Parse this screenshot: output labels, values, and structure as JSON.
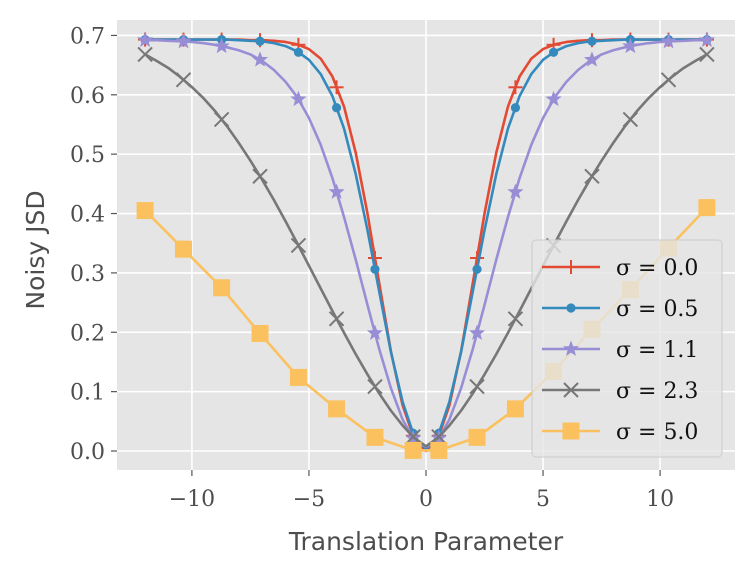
{
  "chart_data": {
    "type": "line",
    "title": "",
    "xlabel": "Translation Parameter",
    "ylabel": "Noisy JSD",
    "xlim": [
      -13.2,
      13.2
    ],
    "ylim": [
      -0.032,
      0.726
    ],
    "xticks": [
      -10,
      -5,
      0,
      5,
      10
    ],
    "xtick_labels": [
      "−10",
      "−5",
      "0",
      "5",
      "10"
    ],
    "yticks": [
      0.0,
      0.1,
      0.2,
      0.3,
      0.4,
      0.5,
      0.6,
      0.7
    ],
    "ytick_labels": [
      "0.0",
      "0.1",
      "0.2",
      "0.3",
      "0.4",
      "0.5",
      "0.6",
      "0.7"
    ],
    "grid": true,
    "legend_position": "lower-right",
    "series": [
      {
        "name": "σ = 0.0",
        "color": "#e24a33",
        "marker": "plus",
        "x": [
          -12,
          -11.5,
          -11,
          -10.5,
          -10,
          -9.5,
          -9,
          -8.5,
          -8,
          -7.5,
          -7,
          -6.5,
          -6,
          -5.5,
          -5,
          -4.5,
          -4,
          -3.5,
          -3,
          -2.5,
          -2,
          -1.5,
          -1,
          -0.5,
          0,
          0.5,
          1,
          1.5,
          2,
          2.5,
          3,
          3.5,
          4,
          4.5,
          5,
          5.5,
          6,
          6.5,
          7,
          7.5,
          8,
          8.5,
          9,
          9.5,
          10,
          10.5,
          11,
          11.5,
          12
        ],
        "y": [
          0.693,
          0.693,
          0.693,
          0.693,
          0.693,
          0.693,
          0.693,
          0.693,
          0.693,
          0.692,
          0.692,
          0.691,
          0.689,
          0.685,
          0.677,
          0.661,
          0.631,
          0.58,
          0.502,
          0.4,
          0.283,
          0.168,
          0.077,
          0.02,
          0.0,
          0.02,
          0.077,
          0.168,
          0.283,
          0.4,
          0.502,
          0.58,
          0.631,
          0.661,
          0.677,
          0.685,
          0.689,
          0.691,
          0.692,
          0.692,
          0.693,
          0.693,
          0.693,
          0.693,
          0.693,
          0.693,
          0.693,
          0.693,
          0.693
        ],
        "marker_x": [
          -12,
          -10.36,
          -8.73,
          -7.09,
          -5.45,
          -3.82,
          -2.18,
          -0.55,
          0.55,
          2.18,
          3.82,
          5.45,
          7.09,
          8.73,
          10.36,
          12
        ]
      },
      {
        "name": "σ = 0.5",
        "color": "#348abd",
        "marker": "dot",
        "x": [
          -12,
          -11.5,
          -11,
          -10.5,
          -10,
          -9.5,
          -9,
          -8.5,
          -8,
          -7.5,
          -7,
          -6.5,
          -6,
          -5.5,
          -5,
          -4.5,
          -4,
          -3.5,
          -3,
          -2.5,
          -2,
          -1.5,
          -1,
          -0.5,
          0,
          0.5,
          1,
          1.5,
          2,
          2.5,
          3,
          3.5,
          4,
          4.5,
          5,
          5.5,
          6,
          6.5,
          7,
          7.5,
          8,
          8.5,
          9,
          9.5,
          10,
          10.5,
          11,
          11.5,
          12
        ],
        "y": [
          0.693,
          0.693,
          0.693,
          0.693,
          0.693,
          0.693,
          0.693,
          0.693,
          0.692,
          0.691,
          0.69,
          0.687,
          0.682,
          0.673,
          0.659,
          0.635,
          0.598,
          0.543,
          0.466,
          0.372,
          0.269,
          0.167,
          0.083,
          0.024,
          0.003,
          0.024,
          0.083,
          0.167,
          0.269,
          0.372,
          0.466,
          0.543,
          0.598,
          0.635,
          0.659,
          0.673,
          0.682,
          0.687,
          0.69,
          0.691,
          0.692,
          0.693,
          0.693,
          0.693,
          0.693,
          0.693,
          0.693,
          0.693,
          0.693
        ],
        "marker_x": [
          -12,
          -10.36,
          -8.73,
          -7.09,
          -5.45,
          -3.82,
          -2.18,
          -0.55,
          0.55,
          2.18,
          3.82,
          5.45,
          7.09,
          8.73,
          10.36,
          12
        ]
      },
      {
        "name": "σ = 1.1",
        "color": "#988ed5",
        "marker": "star",
        "x": [
          -12,
          -11.5,
          -11,
          -10.5,
          -10,
          -9.5,
          -9,
          -8.5,
          -8,
          -7.5,
          -7,
          -6.5,
          -6,
          -5.5,
          -5,
          -4.5,
          -4,
          -3.5,
          -3,
          -2.5,
          -2,
          -1.5,
          -1,
          -0.5,
          0,
          0.5,
          1,
          1.5,
          2,
          2.5,
          3,
          3.5,
          4,
          4.5,
          5,
          5.5,
          6,
          6.5,
          7,
          7.5,
          8,
          8.5,
          9,
          9.5,
          10,
          10.5,
          11,
          11.5,
          12
        ],
        "y": [
          0.692,
          0.692,
          0.691,
          0.69,
          0.689,
          0.687,
          0.684,
          0.68,
          0.675,
          0.668,
          0.657,
          0.642,
          0.622,
          0.596,
          0.561,
          0.516,
          0.46,
          0.394,
          0.322,
          0.246,
          0.172,
          0.106,
          0.053,
          0.018,
          0.007,
          0.018,
          0.053,
          0.106,
          0.172,
          0.246,
          0.322,
          0.394,
          0.46,
          0.516,
          0.561,
          0.596,
          0.622,
          0.642,
          0.657,
          0.668,
          0.675,
          0.68,
          0.684,
          0.687,
          0.689,
          0.69,
          0.691,
          0.692,
          0.692
        ],
        "marker_x": [
          -12,
          -10.36,
          -8.73,
          -7.09,
          -5.45,
          -3.82,
          -2.18,
          -0.55,
          0.55,
          2.18,
          3.82,
          5.45,
          7.09,
          8.73,
          10.36,
          12
        ]
      },
      {
        "name": "σ = 2.3",
        "color": "#777777",
        "marker": "x",
        "x": [
          -12,
          -11.5,
          -11,
          -10.5,
          -10,
          -9.5,
          -9,
          -8.5,
          -8,
          -7.5,
          -7,
          -6.5,
          -6,
          -5.5,
          -5,
          -4.5,
          -4,
          -3.5,
          -3,
          -2.5,
          -2,
          -1.5,
          -1,
          -0.5,
          0,
          0.5,
          1,
          1.5,
          2,
          2.5,
          3,
          3.5,
          4,
          4.5,
          5,
          5.5,
          6,
          6.5,
          7,
          7.5,
          8,
          8.5,
          9,
          9.5,
          10,
          10.5,
          11,
          11.5,
          12
        ],
        "y": [
          0.668,
          0.657,
          0.645,
          0.63,
          0.613,
          0.594,
          0.572,
          0.547,
          0.519,
          0.489,
          0.457,
          0.423,
          0.387,
          0.35,
          0.312,
          0.274,
          0.236,
          0.199,
          0.163,
          0.129,
          0.097,
          0.068,
          0.043,
          0.022,
          0.008,
          0.022,
          0.043,
          0.068,
          0.097,
          0.129,
          0.163,
          0.199,
          0.236,
          0.274,
          0.312,
          0.35,
          0.387,
          0.423,
          0.457,
          0.489,
          0.519,
          0.547,
          0.572,
          0.594,
          0.613,
          0.63,
          0.645,
          0.657,
          0.668
        ],
        "marker_x": [
          -12,
          -10.36,
          -8.73,
          -7.09,
          -5.45,
          -3.82,
          -2.18,
          -0.55,
          0.55,
          2.18,
          3.82,
          5.45,
          7.09,
          8.73,
          10.36,
          12
        ]
      },
      {
        "name": "σ = 5.0",
        "color": "#fbc15e",
        "marker": "square",
        "x": [
          -12,
          -10.36,
          -8.73,
          -7.09,
          -5.45,
          -3.82,
          -2.18,
          -0.55,
          0.55,
          2.18,
          3.82,
          5.45,
          7.09,
          8.73,
          10.36,
          12
        ],
        "y": [
          0.405,
          0.34,
          0.275,
          0.198,
          0.124,
          0.071,
          0.023,
          0.001,
          0.001,
          0.023,
          0.071,
          0.134,
          0.205,
          0.272,
          0.342,
          0.41
        ],
        "marker_x": [
          -12,
          -10.36,
          -8.73,
          -7.09,
          -5.45,
          -3.82,
          -2.18,
          -0.55,
          0.55,
          2.18,
          3.82,
          5.45,
          7.09,
          8.73,
          10.36,
          12
        ]
      }
    ]
  }
}
